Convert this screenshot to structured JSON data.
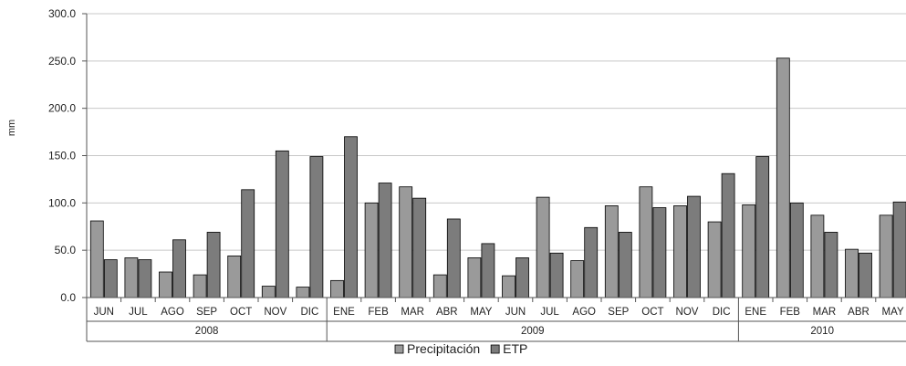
{
  "chart_data": {
    "type": "bar",
    "ylabel": "mm",
    "ylim": [
      0,
      300
    ],
    "yticks": [
      "0.0",
      "50.0",
      "100.0",
      "150.0",
      "200.0",
      "250.0",
      "300.0"
    ],
    "grid": true,
    "legend_position": "bottom",
    "categories": [
      "JUN",
      "JUL",
      "AGO",
      "SEP",
      "OCT",
      "NOV",
      "DIC",
      "ENE",
      "FEB",
      "MAR",
      "ABR",
      "MAY",
      "JUN",
      "JUL",
      "AGO",
      "SEP",
      "OCT",
      "NOV",
      "DIC",
      "ENE",
      "FEB",
      "MAR",
      "ABR",
      "MAY"
    ],
    "groups": [
      {
        "label": "2008",
        "start": 0,
        "end": 6
      },
      {
        "label": "2009",
        "start": 7,
        "end": 18
      },
      {
        "label": "2010",
        "start": 19,
        "end": 23
      }
    ],
    "series": [
      {
        "name": "Precipitación",
        "color": "#9a9a9a",
        "values": [
          81,
          42,
          27,
          24,
          44,
          12,
          11,
          18,
          100,
          117,
          24,
          42,
          23,
          106,
          39,
          97,
          117,
          97,
          80,
          98,
          253,
          87,
          51,
          87
        ]
      },
      {
        "name": "ETP",
        "color": "#7c7c7c",
        "values": [
          40,
          40,
          61,
          69,
          114,
          155,
          149,
          170,
          121,
          105,
          83,
          57,
          42,
          47,
          74,
          69,
          95,
          107,
          131,
          149,
          100,
          69,
          47,
          101
        ]
      }
    ]
  }
}
